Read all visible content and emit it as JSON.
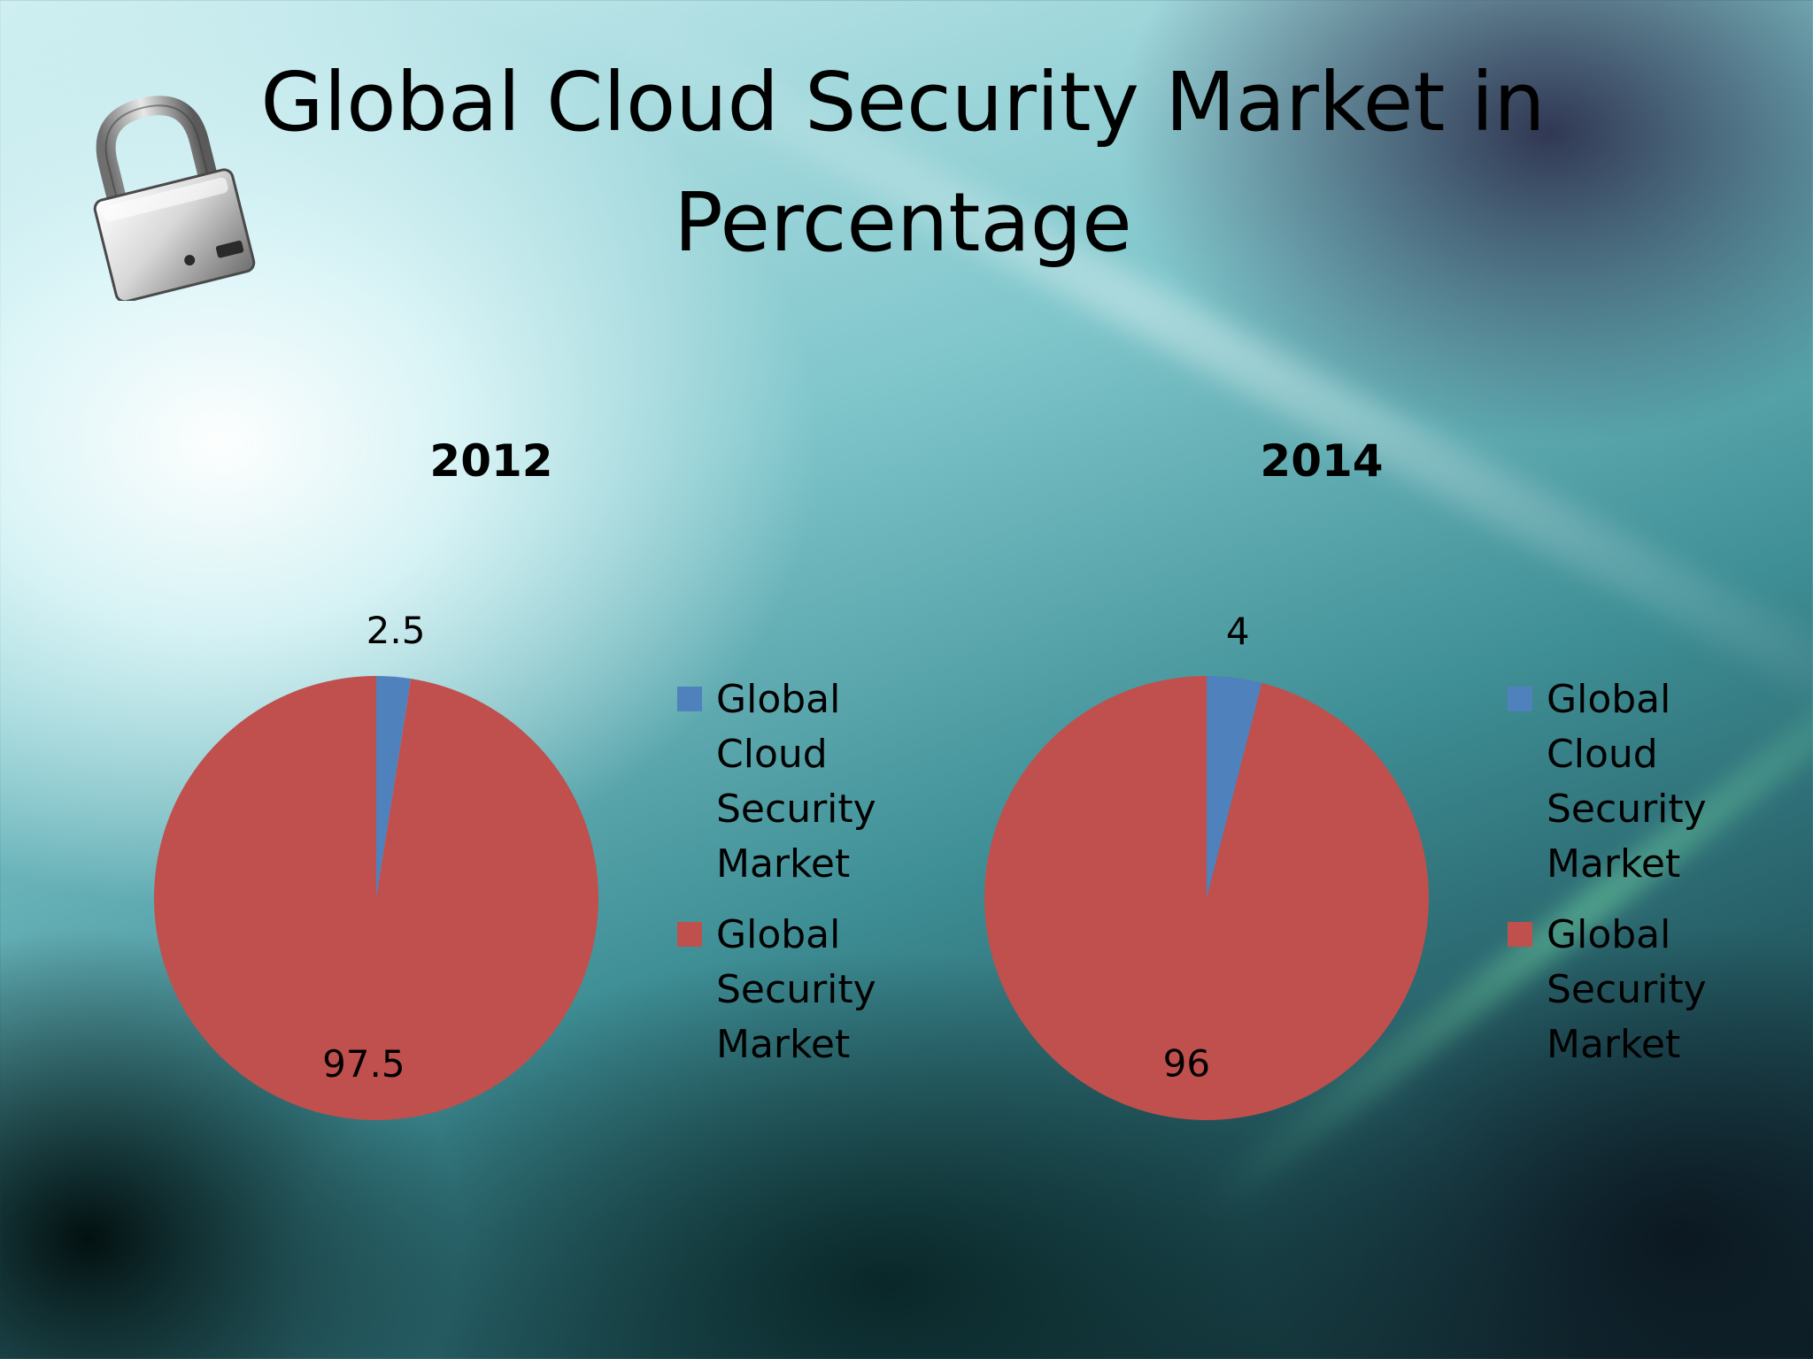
{
  "slide": {
    "title": "Global Cloud Security Market in Percentage",
    "icon": "padlock-icon"
  },
  "colors": {
    "cloud": "#4f81bd",
    "security": "#c0504d"
  },
  "chart_data": [
    {
      "type": "pie",
      "title": "2012",
      "categories": [
        "Global Cloud Security Market",
        "Global Security Market"
      ],
      "values": [
        2.5,
        97.5
      ],
      "data_labels": [
        "2.5",
        "97.5"
      ],
      "legend": "right"
    },
    {
      "type": "pie",
      "title": "2014",
      "categories": [
        "Global Cloud Security Market",
        "Global Security Market"
      ],
      "values": [
        4,
        96
      ],
      "data_labels": [
        "4",
        "96"
      ],
      "legend": "right"
    }
  ]
}
